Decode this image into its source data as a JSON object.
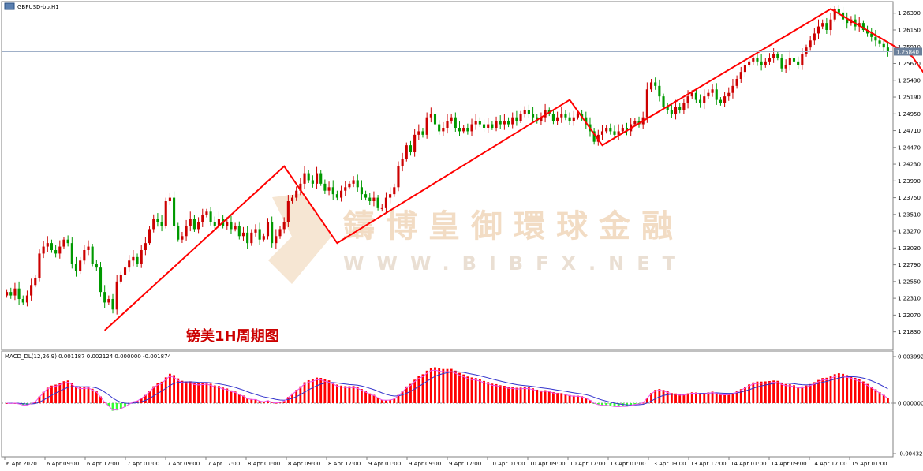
{
  "symbol": "GBPUSD-bb,H1",
  "annotation": "镑美1H周期图",
  "watermark": {
    "cn": "鑄博皇御環球金融",
    "en": "WWW.BIBFX.NET"
  },
  "macd_label": "MACD_DL(12,26,9) 0.001187 0.002124 0.000000 -0.001874",
  "current_price": "1.25840",
  "colors": {
    "bull": "#cc0000",
    "bear": "#009900",
    "macd_pos": "#ff0000",
    "macd_neg": "#33ff33",
    "signal": "#3333cc",
    "macd_line": "#ee55ee",
    "trend": "#ff0000"
  },
  "chart_data": {
    "type": "candlestick",
    "y_ticks": [
      "1.26390",
      "1.26150",
      "1.25910",
      "1.25670",
      "1.25430",
      "1.25190",
      "1.24950",
      "1.24710",
      "1.24470",
      "1.24230",
      "1.23990",
      "1.23750",
      "1.23510",
      "1.23270",
      "1.23030",
      "1.22790",
      "1.22550",
      "1.22310",
      "1.22070",
      "1.21830"
    ],
    "ylim": [
      1.216,
      1.265
    ],
    "x_ticks": [
      "6 Apr 2020",
      "6 Apr 09:00",
      "6 Apr 17:00",
      "7 Apr 01:00",
      "7 Apr 09:00",
      "7 Apr 17:00",
      "8 Apr 01:00",
      "8 Apr 09:00",
      "8 Apr 17:00",
      "9 Apr 01:00",
      "9 Apr 09:00",
      "9 Apr 17:00",
      "10 Apr 01:00",
      "10 Apr 09:00",
      "10 Apr 17:00",
      "13 Apr 01:00",
      "13 Apr 09:00",
      "13 Apr 17:00",
      "14 Apr 01:00",
      "14 Apr 09:00",
      "14 Apr 17:00",
      "15 Apr 01:00"
    ],
    "trend_points": [
      [
        24,
        1.2185
      ],
      [
        68,
        1.242
      ],
      [
        81,
        1.231
      ],
      [
        138,
        1.2515
      ],
      [
        146,
        1.245
      ],
      [
        202,
        1.2645
      ],
      [
        222,
        1.2577
      ]
    ],
    "closes": [
      1.224,
      1.2235,
      1.2245,
      1.223,
      1.2225,
      1.2235,
      1.225,
      1.226,
      1.2295,
      1.2305,
      1.231,
      1.23,
      1.2295,
      1.2305,
      1.2315,
      1.231,
      1.228,
      1.227,
      1.2285,
      1.23,
      1.2305,
      1.228,
      1.2275,
      1.224,
      1.2225,
      1.223,
      1.2215,
      1.2255,
      1.2265,
      1.2275,
      1.2285,
      1.229,
      1.228,
      1.23,
      1.231,
      1.233,
      1.2345,
      1.234,
      1.2335,
      1.237,
      1.2375,
      1.2335,
      1.2315,
      1.232,
      1.2335,
      1.2345,
      1.233,
      1.234,
      1.235,
      1.2355,
      1.234,
      1.2335,
      1.2345,
      1.2335,
      1.234,
      1.233,
      1.2335,
      1.232,
      1.2325,
      1.231,
      1.2325,
      1.233,
      1.2315,
      1.232,
      1.234,
      1.231,
      1.232,
      1.233,
      1.234,
      1.237,
      1.2375,
      1.2385,
      1.2395,
      1.241,
      1.24,
      1.2395,
      1.241,
      1.2395,
      1.2385,
      1.239,
      1.238,
      1.2375,
      1.2385,
      1.239,
      1.2395,
      1.24,
      1.239,
      1.238,
      1.2375,
      1.237,
      1.2375,
      1.236,
      1.236,
      1.2375,
      1.238,
      1.239,
      1.242,
      1.243,
      1.245,
      1.244,
      1.2465,
      1.247,
      1.2465,
      1.249,
      1.2495,
      1.248,
      1.247,
      1.2475,
      1.2485,
      1.249,
      1.2475,
      1.247,
      1.2475,
      1.247,
      1.248,
      1.2485,
      1.248,
      1.2475,
      1.248,
      1.2475,
      1.2485,
      1.248,
      1.2485,
      1.248,
      1.249,
      1.2485,
      1.2495,
      1.25,
      1.2495,
      1.249,
      1.2485,
      1.249,
      1.25,
      1.2495,
      1.2485,
      1.249,
      1.2495,
      1.249,
      1.2485,
      1.249,
      1.2495,
      1.249,
      1.248,
      1.247,
      1.2455,
      1.2465,
      1.247,
      1.2475,
      1.247,
      1.2465,
      1.247,
      1.2475,
      1.247,
      1.248,
      1.2485,
      1.248,
      1.249,
      1.253,
      1.254,
      1.2535,
      1.252,
      1.2505,
      1.25,
      1.2495,
      1.2505,
      1.25,
      1.251,
      1.252,
      1.2525,
      1.2515,
      1.251,
      1.252,
      1.2525,
      1.253,
      1.2515,
      1.251,
      1.252,
      1.2525,
      1.2535,
      1.2545,
      1.2555,
      1.2565,
      1.257,
      1.2575,
      1.257,
      1.2565,
      1.257,
      1.2575,
      1.258,
      1.2575,
      1.256,
      1.2565,
      1.2575,
      1.257,
      1.2565,
      1.258,
      1.259,
      1.26,
      1.261,
      1.262,
      1.2625,
      1.2615,
      1.263,
      1.2645,
      1.264,
      1.263,
      1.2625,
      1.263,
      1.262,
      1.2625,
      1.2615,
      1.261,
      1.2605,
      1.26,
      1.2595,
      1.259,
      1.2584
    ],
    "macd_range": [
      -0.004321,
      0.003992
    ],
    "macd_ticks": [
      "0.003992",
      "0.000000",
      "-0.004321"
    ]
  }
}
